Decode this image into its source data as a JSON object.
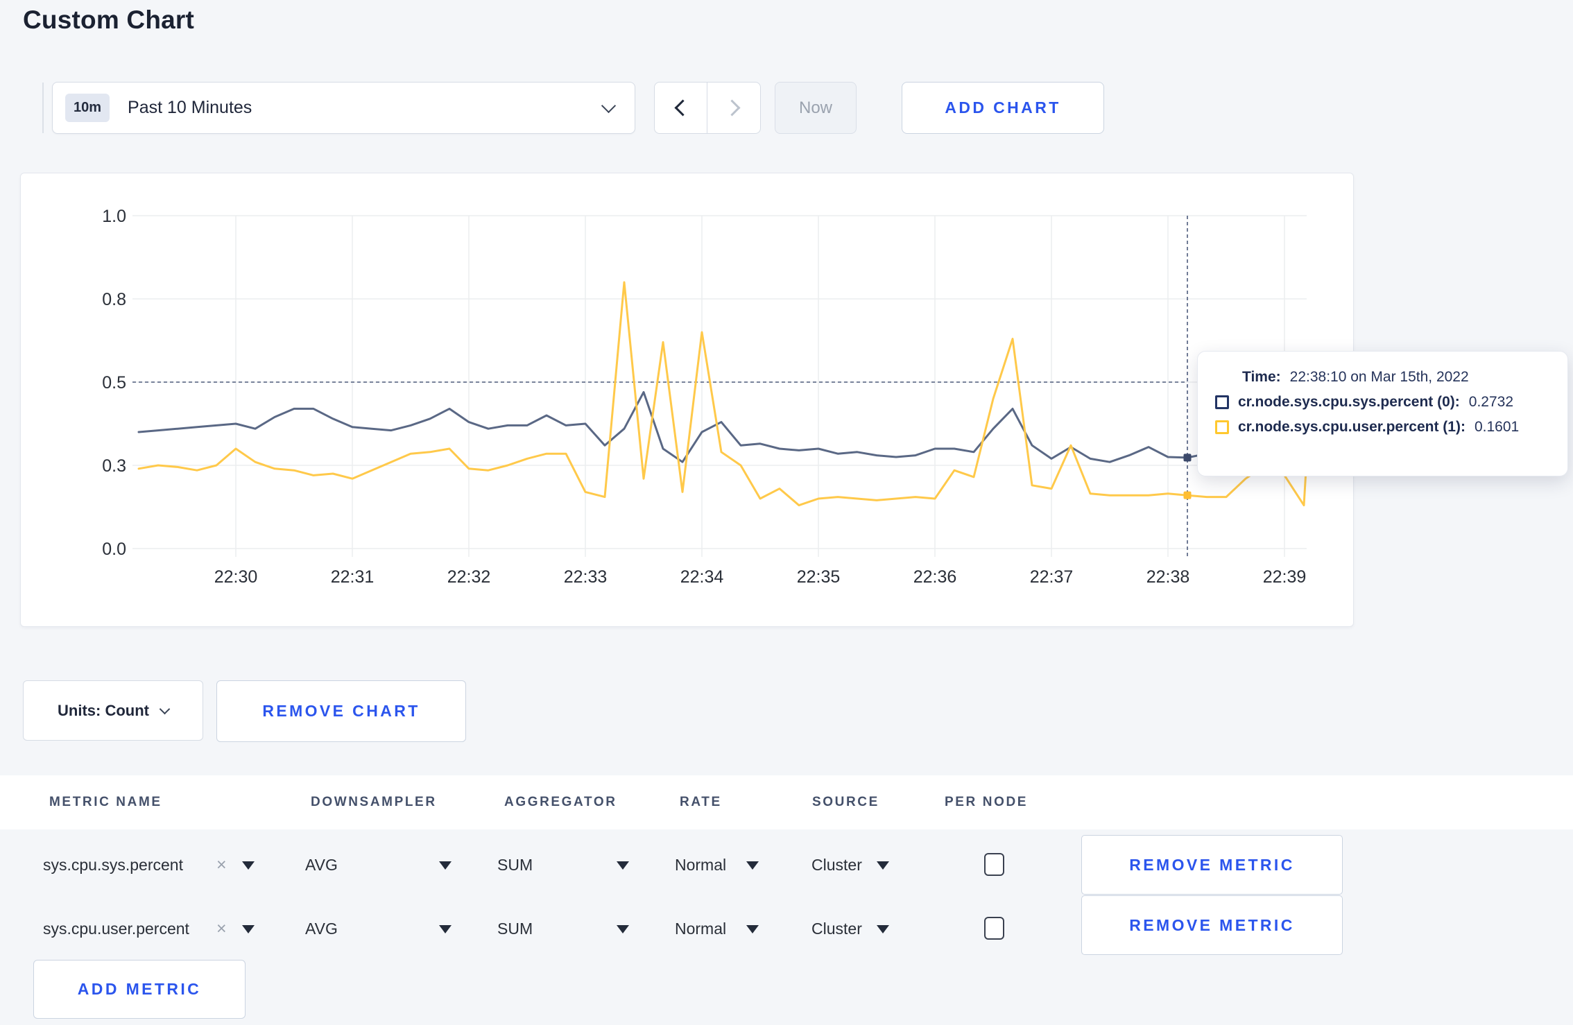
{
  "page": {
    "title": "Custom Chart",
    "background": "#F4F6F9",
    "accent_blue": "#2B55ED"
  },
  "toolbar": {
    "time_badge": "10m",
    "time_label": "Past 10 Minutes",
    "now_label": "Now",
    "add_chart_label": "ADD CHART"
  },
  "tooltip": {
    "time_label": "Time:",
    "time_value": "22:38:10 on Mar 15th, 2022",
    "rows": [
      {
        "label": "cr.node.sys.cpu.sys.percent (0):",
        "value": "0.2732",
        "color": "#223464"
      },
      {
        "label": "cr.node.sys.cpu.user.percent (1):",
        "value": "0.1601",
        "color": "#FFC82E"
      }
    ]
  },
  "units_bar": {
    "units_label": "Units: Count",
    "remove_chart_label": "REMOVE CHART"
  },
  "metrics_table": {
    "headers": [
      "METRIC NAME",
      "DOWNSAMPLER",
      "AGGREGATOR",
      "RATE",
      "SOURCE",
      "PER NODE"
    ],
    "rows": [
      {
        "metric": "sys.cpu.sys.percent",
        "downsampler": "AVG",
        "aggregator": "SUM",
        "rate": "Normal",
        "source": "Cluster",
        "per_node_checked": false,
        "remove_label": "REMOVE METRIC"
      },
      {
        "metric": "sys.cpu.user.percent",
        "downsampler": "AVG",
        "aggregator": "SUM",
        "rate": "Normal",
        "source": "Cluster",
        "per_node_checked": false,
        "remove_label": "REMOVE METRIC"
      }
    ],
    "add_metric_label": "ADD METRIC"
  },
  "chart_data": {
    "type": "line",
    "title": "",
    "xlabel": "",
    "ylabel": "",
    "ylim": [
      0,
      1
    ],
    "grid": true,
    "legend_position": "tooltip",
    "y_tick_values": [
      1,
      0.75,
      0.5,
      0.25,
      0
    ],
    "y_tick_labels": [
      "1.0",
      "0.8",
      "0.5",
      "0.3",
      "0.0"
    ],
    "x_tick_labels": [
      "22:30",
      "22:31",
      "22:32",
      "22:33",
      "22:34",
      "22:35",
      "22:36",
      "22:37",
      "22:38",
      "22:39"
    ],
    "x_start_seconds": -50,
    "x_step_seconds": 10,
    "crosshair": {
      "time_label": "22:38:10",
      "x_seconds": 490,
      "y_cursor": 0.5,
      "point_values": [
        0.2732,
        0.1601
      ]
    },
    "series": [
      {
        "name": "cr.node.sys.cpu.sys.percent",
        "color": "#5A6885",
        "dot_color": "#3D4A6C",
        "values": [
          0.35,
          0.355,
          0.36,
          0.365,
          0.37,
          0.375,
          0.36,
          0.395,
          0.42,
          0.42,
          0.39,
          0.365,
          0.36,
          0.355,
          0.37,
          0.39,
          0.42,
          0.38,
          0.36,
          0.37,
          0.37,
          0.4,
          0.37,
          0.375,
          0.31,
          0.36,
          0.47,
          0.3,
          0.26,
          0.35,
          0.38,
          0.31,
          0.315,
          0.3,
          0.295,
          0.3,
          0.285,
          0.29,
          0.28,
          0.275,
          0.28,
          0.3,
          0.3,
          0.29,
          0.36,
          0.42,
          0.31,
          0.27,
          0.305,
          0.27,
          0.26,
          0.28,
          0.305,
          0.275,
          0.2732,
          0.285,
          0.3,
          0.31,
          0.3,
          0.295,
          0.305,
          0.3
        ]
      },
      {
        "name": "cr.node.sys.cpu.user.percent",
        "color": "#FFC94A",
        "dot_color": "#FFBE33",
        "values": [
          0.24,
          0.25,
          0.245,
          0.235,
          0.25,
          0.3,
          0.26,
          0.24,
          0.235,
          0.22,
          0.225,
          0.21,
          0.235,
          0.26,
          0.285,
          0.29,
          0.3,
          0.24,
          0.235,
          0.25,
          0.27,
          0.285,
          0.285,
          0.17,
          0.155,
          0.8,
          0.21,
          0.62,
          0.17,
          0.65,
          0.29,
          0.25,
          0.15,
          0.18,
          0.13,
          0.15,
          0.155,
          0.15,
          0.145,
          0.15,
          0.155,
          0.15,
          0.235,
          0.215,
          0.45,
          0.63,
          0.19,
          0.18,
          0.31,
          0.165,
          0.16,
          0.16,
          0.16,
          0.165,
          0.1601,
          0.155,
          0.155,
          0.21,
          0.25,
          0.22,
          0.13,
          0.27
        ]
      }
    ]
  }
}
